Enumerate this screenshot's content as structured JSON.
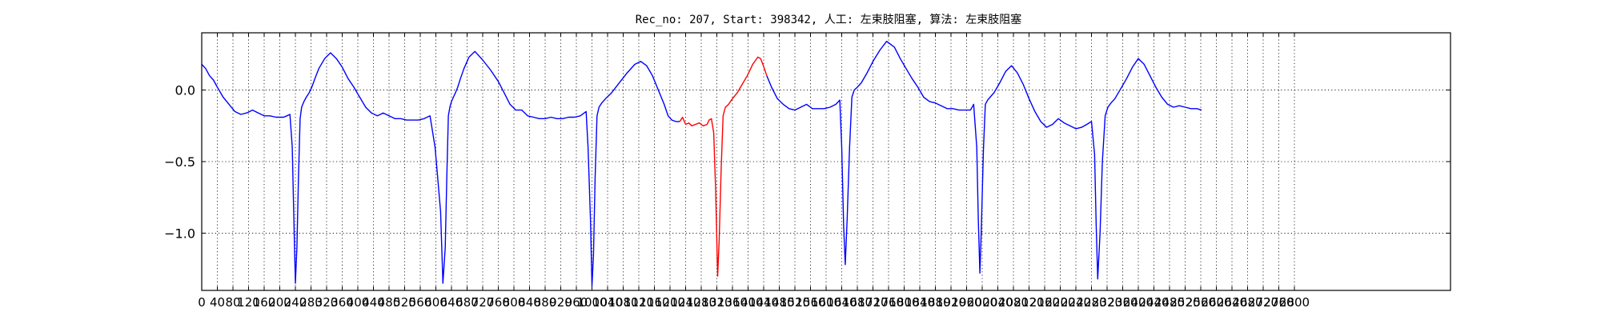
{
  "chart_data": {
    "type": "line",
    "title": "Rec_no: 207, Start: 398342, 人工: 左束肢阻塞, 算法: 左束肢阻塞",
    "xlabel": "",
    "ylabel": "",
    "xlim": [
      0,
      3200
    ],
    "ylim": [
      -1.4,
      0.4
    ],
    "grid": true,
    "grid_style": "dotted",
    "yticks": [
      0.0,
      -0.5,
      -1.0
    ],
    "ytick_labels": [
      "0.0",
      "−0.5",
      "−1.0"
    ],
    "xticks": [
      0,
      40,
      80,
      120,
      160,
      200,
      240,
      280,
      320,
      360,
      400,
      440,
      480,
      520,
      560,
      600,
      640,
      680,
      720,
      760,
      800,
      840,
      880,
      920,
      960,
      1000,
      1040,
      1080,
      1120,
      1160,
      1200,
      1240,
      1280,
      1320,
      1360,
      1400,
      1440,
      1480,
      1520,
      1560,
      1600,
      1640,
      1680,
      1720,
      1760,
      1800,
      1840,
      1880,
      1920,
      1960,
      2000,
      2040,
      2080,
      2120,
      2160,
      2200,
      2240,
      2280,
      2320,
      2360,
      2400,
      2440,
      2480,
      2520,
      2560,
      2600,
      2640,
      2680,
      2720,
      2760,
      2800
    ],
    "series": [
      {
        "color": "#0000ff",
        "x": [
          0,
          10,
          20,
          30,
          40,
          55,
          70,
          85,
          100,
          115,
          130,
          145,
          160,
          175,
          190,
          200,
          210,
          218,
          226,
          232,
          236,
          240,
          244,
          248,
          252,
          256,
          262,
          268,
          275,
          282,
          290,
          300,
          315,
          330,
          345,
          360,
          375,
          390,
          405,
          420,
          435,
          450,
          465,
          480,
          495,
          510,
          525,
          540,
          555,
          570,
          585,
          598,
          612,
          618,
          624,
          628,
          632,
          636,
          640,
          645,
          650,
          656,
          663,
          672,
          685,
          700,
          720,
          740,
          760,
          775,
          790,
          805,
          820,
          835,
          850,
          865,
          880,
          895,
          910,
          925,
          940,
          955,
          970,
          985,
          990,
          996,
          1000,
          1004,
          1008,
          1013,
          1018,
          1025,
          1035,
          1050,
          1070,
          1090,
          1110,
          1125,
          1140,
          1155,
          1170,
          1185,
          1195,
          1205,
          1215,
          1225
        ],
        "y": [
          0.18,
          0.15,
          0.1,
          0.07,
          0.02,
          -0.05,
          -0.1,
          -0.15,
          -0.17,
          -0.16,
          -0.14,
          -0.16,
          -0.18,
          -0.18,
          -0.19,
          -0.19,
          -0.19,
          -0.18,
          -0.17,
          -0.4,
          -0.9,
          -1.35,
          -1.1,
          -0.6,
          -0.2,
          -0.12,
          -0.08,
          -0.05,
          -0.02,
          0.02,
          0.08,
          0.15,
          0.22,
          0.26,
          0.22,
          0.16,
          0.08,
          0.02,
          -0.05,
          -0.12,
          -0.16,
          -0.18,
          -0.16,
          -0.18,
          -0.2,
          -0.2,
          -0.21,
          -0.21,
          -0.21,
          -0.2,
          -0.18,
          -0.4,
          -0.85,
          -1.35,
          -1.1,
          -0.6,
          -0.18,
          -0.12,
          -0.08,
          -0.05,
          -0.02,
          0.02,
          0.08,
          0.15,
          0.23,
          0.27,
          0.21,
          0.14,
          0.06,
          -0.02,
          -0.1,
          -0.14,
          -0.14,
          -0.18,
          -0.19,
          -0.2,
          -0.2,
          -0.19,
          -0.2,
          -0.2,
          -0.19,
          -0.19,
          -0.18,
          -0.15,
          -0.4,
          -0.9,
          -1.37,
          -1.15,
          -0.62,
          -0.18,
          -0.12,
          -0.09,
          -0.06,
          -0.02,
          0.05,
          0.12,
          0.18,
          0.2,
          0.17,
          0.1,
          0.0,
          -0.1,
          -0.18,
          -0.21,
          -0.22,
          -0.22
        ]
      },
      {
        "color": "#ff0000",
        "x": [
          1225,
          1232,
          1240,
          1248,
          1256,
          1265,
          1275,
          1285,
          1295,
          1300,
          1306,
          1312,
          1317,
          1322,
          1326,
          1331,
          1336,
          1342,
          1350,
          1360,
          1372,
          1385,
          1398,
          1412,
          1425,
          1432,
          1438,
          1448
        ],
        "y": [
          -0.22,
          -0.19,
          -0.24,
          -0.23,
          -0.25,
          -0.24,
          -0.23,
          -0.25,
          -0.24,
          -0.21,
          -0.2,
          -0.3,
          -0.7,
          -1.3,
          -1.05,
          -0.55,
          -0.18,
          -0.12,
          -0.1,
          -0.06,
          -0.02,
          0.04,
          0.1,
          0.18,
          0.23,
          0.22,
          0.18,
          0.1
        ]
      },
      {
        "color": "#0000ff",
        "x": [
          1448,
          1460,
          1475,
          1490,
          1505,
          1520,
          1535,
          1550,
          1565,
          1580,
          1595,
          1610,
          1625,
          1635,
          1640,
          1645,
          1649,
          1654,
          1660,
          1666,
          1672,
          1680,
          1690,
          1705,
          1720,
          1738,
          1755,
          1775,
          1790,
          1805,
          1820,
          1835,
          1850,
          1865,
          1880,
          1895,
          1910,
          1925,
          1940,
          1955,
          1970,
          1978,
          1986,
          1990,
          1994,
          1998,
          2003,
          2008,
          2014,
          2020,
          2030,
          2045,
          2060,
          2075,
          2090,
          2105,
          2120,
          2135,
          2150,
          2165,
          2180,
          2195,
          2210,
          2225,
          2240,
          2255,
          2268,
          2280,
          2288,
          2292,
          2296,
          2302,
          2308,
          2315,
          2322,
          2330,
          2340,
          2355,
          2370,
          2385,
          2400,
          2415,
          2430,
          2445,
          2460,
          2475,
          2490,
          2505,
          2520,
          2535,
          2550,
          2562
        ],
        "y": [
          0.1,
          0.02,
          -0.06,
          -0.1,
          -0.13,
          -0.14,
          -0.12,
          -0.1,
          -0.13,
          -0.13,
          -0.13,
          -0.12,
          -0.1,
          -0.07,
          -0.4,
          -0.95,
          -1.22,
          -0.9,
          -0.4,
          -0.05,
          0.0,
          0.02,
          0.05,
          0.12,
          0.2,
          0.28,
          0.34,
          0.3,
          0.22,
          0.15,
          0.08,
          0.02,
          -0.05,
          -0.08,
          -0.09,
          -0.11,
          -0.13,
          -0.13,
          -0.14,
          -0.14,
          -0.14,
          -0.1,
          -0.4,
          -0.9,
          -1.28,
          -0.95,
          -0.42,
          -0.1,
          -0.07,
          -0.05,
          -0.02,
          0.05,
          0.13,
          0.17,
          0.12,
          0.04,
          -0.06,
          -0.15,
          -0.22,
          -0.26,
          -0.24,
          -0.2,
          -0.23,
          -0.25,
          -0.27,
          -0.26,
          -0.24,
          -0.22,
          -0.45,
          -0.95,
          -1.32,
          -1.0,
          -0.5,
          -0.18,
          -0.12,
          -0.09,
          -0.06,
          0.01,
          0.08,
          0.16,
          0.22,
          0.18,
          0.1,
          0.02,
          -0.05,
          -0.1,
          -0.12,
          -0.11,
          -0.12,
          -0.13,
          -0.13,
          -0.14
        ]
      }
    ]
  }
}
